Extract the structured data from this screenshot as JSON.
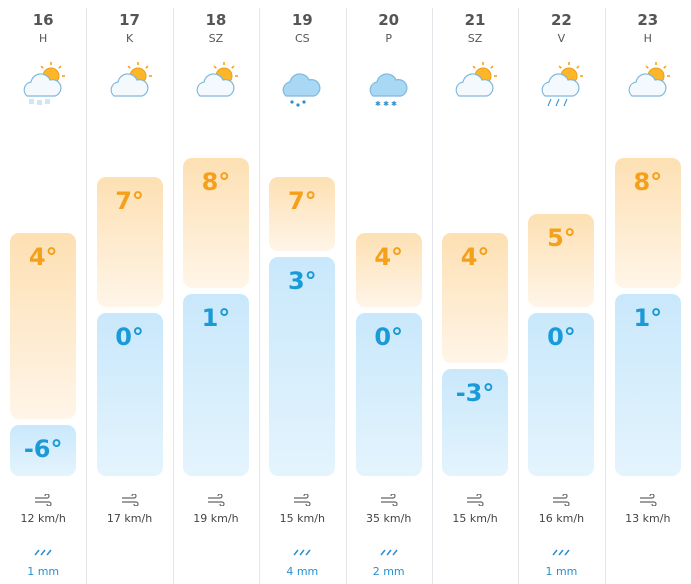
{
  "days": [
    {
      "day": "16",
      "weekday": "H",
      "max": "4°",
      "min": "-6°",
      "wind": "12 km/h",
      "precip": "1 mm"
    },
    {
      "day": "17",
      "weekday": "K",
      "max": "7°",
      "min": "0°",
      "wind": "17 km/h"
    },
    {
      "day": "18",
      "weekday": "SZ",
      "max": "8°",
      "min": "1°",
      "wind": "19 km/h"
    },
    {
      "day": "19",
      "weekday": "CS",
      "max": "7°",
      "min": "3°",
      "wind": "15 km/h",
      "precip": "4 mm"
    },
    {
      "day": "20",
      "weekday": "P",
      "max": "4°",
      "min": "0°",
      "wind": "35 km/h",
      "precip": "2 mm"
    },
    {
      "day": "21",
      "weekday": "SZ",
      "max": "4°",
      "min": "-3°",
      "wind": "15 km/h"
    },
    {
      "day": "22",
      "weekday": "V",
      "max": "5°",
      "min": "0°",
      "wind": "16 km/h",
      "precip": "1 mm"
    },
    {
      "day": "23",
      "weekday": "H",
      "max": "8°",
      "min": "1°",
      "wind": "13 km/h"
    }
  ]
}
